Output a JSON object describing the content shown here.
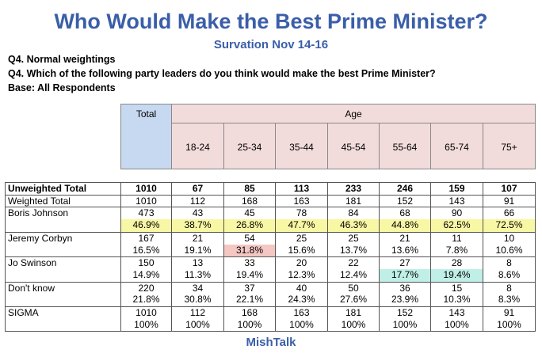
{
  "header": {
    "title": "Who Would Make the Best Prime Minister?",
    "subtitle": "Survation Nov 14-16"
  },
  "notes": [
    "Q4. Normal weightings",
    "Q4. Which of the following party leaders do you think would make the best Prime Minister?",
    "Base: All Respondents"
  ],
  "table": {
    "total_header": "Total",
    "group_header": "Age",
    "age_columns": [
      "18-24",
      "25-34",
      "35-44",
      "45-54",
      "55-64",
      "65-74",
      "75+"
    ],
    "rows": [
      {
        "label": "Unweighted Total",
        "cells": [
          "1010",
          "67",
          "85",
          "113",
          "233",
          "246",
          "159",
          "107"
        ]
      },
      {
        "label": "Weighted Total",
        "cells": [
          "1010",
          "112",
          "168",
          "163",
          "181",
          "152",
          "143",
          "91"
        ]
      },
      {
        "label": "Boris Johnson",
        "cells": [
          "473",
          "43",
          "45",
          "78",
          "84",
          "68",
          "90",
          "66"
        ]
      },
      {
        "label": null,
        "cells": [
          "46.9%",
          "38.7%",
          "26.8%",
          "47.7%",
          "46.3%",
          "44.8%",
          "62.5%",
          "72.5%"
        ]
      },
      {
        "label": "Jeremy Corbyn",
        "cells": [
          "167",
          "21",
          "54",
          "25",
          "25",
          "21",
          "11",
          "10"
        ]
      },
      {
        "label": null,
        "cells": [
          "16.5%",
          "19.1%",
          "31.8%",
          "15.6%",
          "13.7%",
          "13.6%",
          "7.8%",
          "10.6%"
        ]
      },
      {
        "label": "Jo Swinson",
        "cells": [
          "150",
          "13",
          "33",
          "20",
          "22",
          "27",
          "28",
          "8"
        ]
      },
      {
        "label": null,
        "cells": [
          "14.9%",
          "11.3%",
          "19.4%",
          "12.3%",
          "12.4%",
          "17.7%",
          "19.4%",
          "8.6%"
        ]
      },
      {
        "label": "Don't know",
        "cells": [
          "220",
          "34",
          "37",
          "40",
          "50",
          "36",
          "15",
          "8"
        ]
      },
      {
        "label": null,
        "cells": [
          "21.8%",
          "30.8%",
          "22.1%",
          "24.3%",
          "27.6%",
          "23.9%",
          "10.3%",
          "8.3%"
        ]
      },
      {
        "label": "SIGMA",
        "cells": [
          "1010",
          "112",
          "168",
          "163",
          "181",
          "152",
          "143",
          "91"
        ]
      },
      {
        "label": null,
        "cells": [
          "100%",
          "100%",
          "100%",
          "100%",
          "100%",
          "100%",
          "100%",
          "100%"
        ]
      }
    ]
  },
  "footer": "MishTalk"
}
